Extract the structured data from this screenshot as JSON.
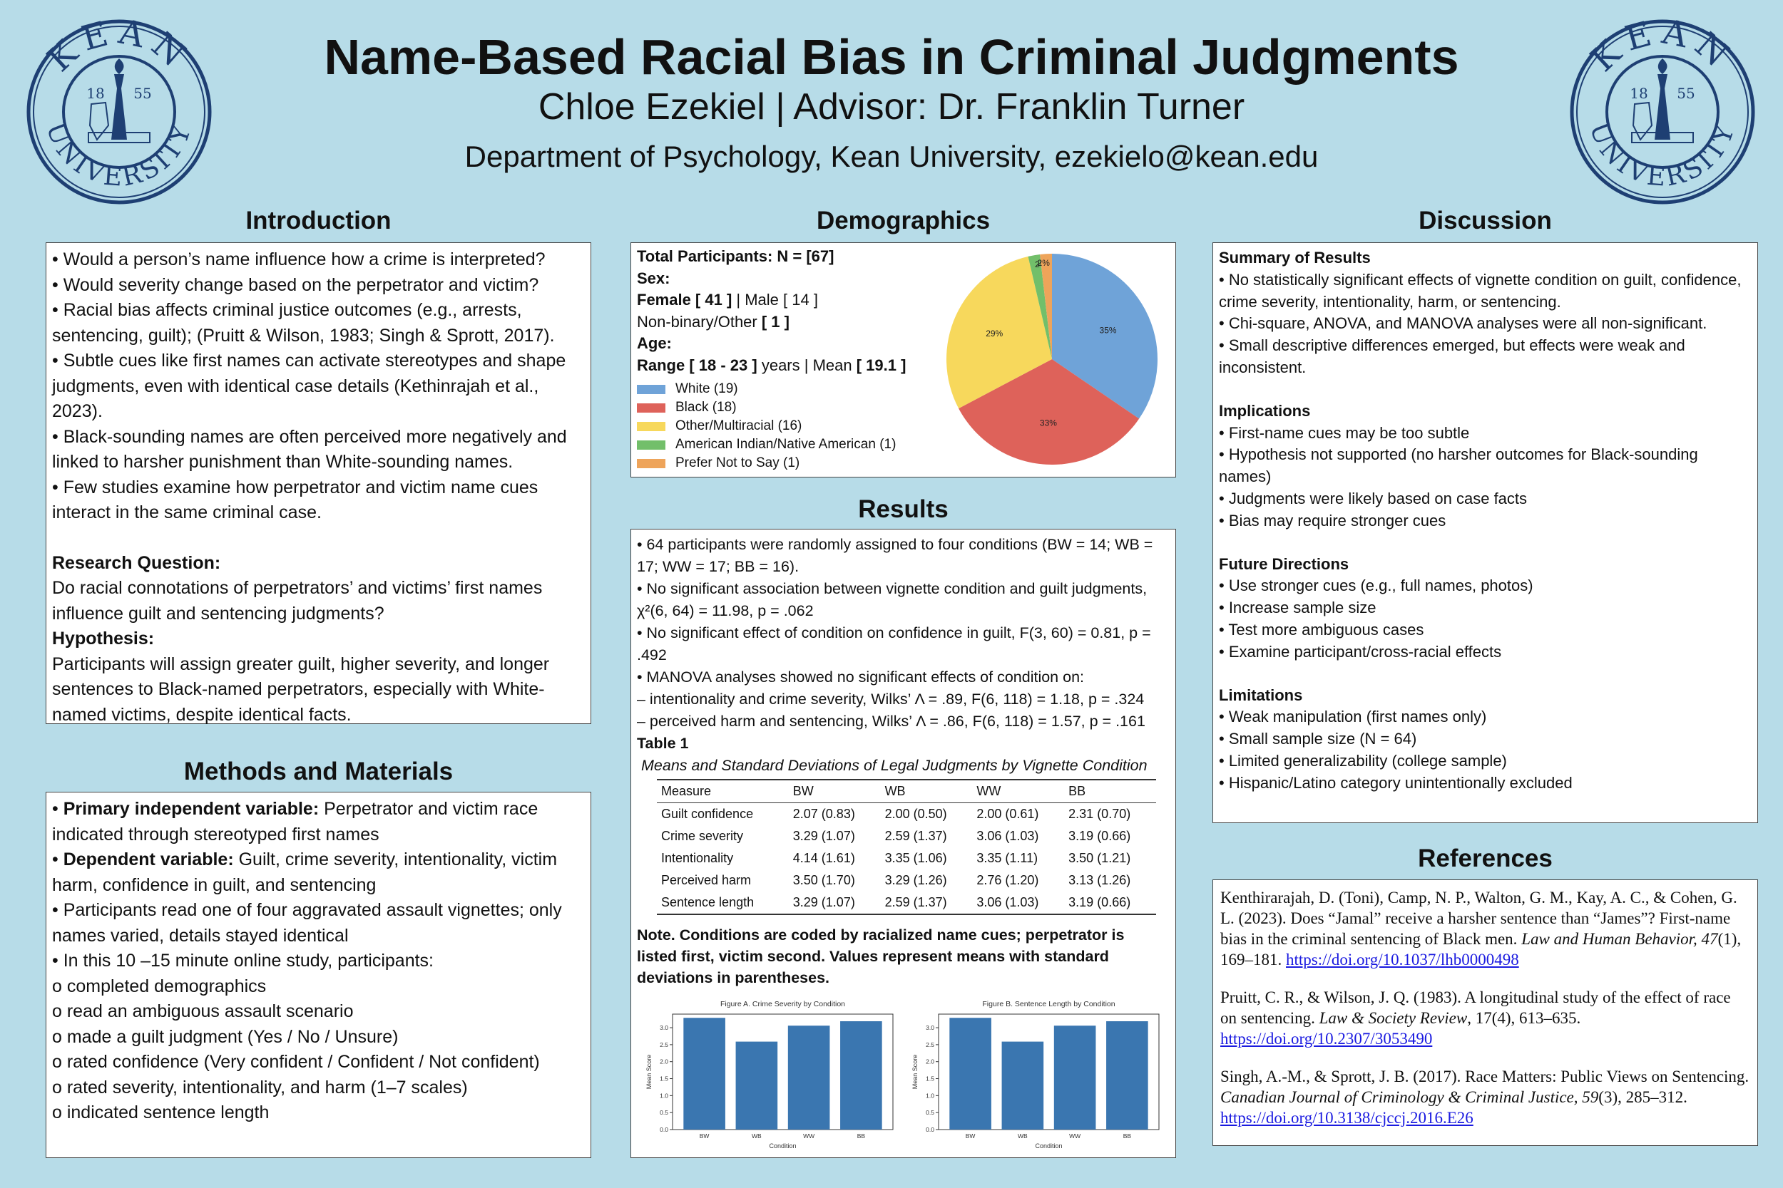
{
  "header": {
    "title": "Name-Based Racial Bias in Criminal Judgments",
    "authors": "Chloe Ezekiel | Advisor: Dr. Franklin Turner",
    "department": "Department of Psychology, Kean University, ezekielo@kean.edu",
    "logo": {
      "name": "kean-university-seal",
      "text_top": "KEAN",
      "text_bottom": "UNIVERSITY",
      "year_left": "18",
      "year_right": "55",
      "color": "#1e3f73"
    }
  },
  "introduction": {
    "title": "Introduction",
    "bullets": [
      "• Would a person’s name influence how a crime is interpreted?",
      "• Would severity change based on the perpetrator and victim?",
      "• Racial bias affects criminal justice outcomes (e.g., arrests, sentencing, guilt); (Pruitt & Wilson, 1983; Singh & Sprott, 2017).",
      "• Subtle cues like first names can activate stereotypes and shape judgments, even with identical case details (Kethinrajah et al., 2023).",
      "• Black-sounding names are often perceived more negatively and linked to harsher punishment than White-sounding names.",
      "• Few studies examine how perpetrator and victim name cues interact in the same criminal case."
    ],
    "rq_label": "Research Question:",
    "rq_text": "Do racial connotations of perpetrators’ and victims’ first names influence guilt and sentencing judgments?",
    "hyp_label": "Hypothesis:",
    "hyp_text": "Participants will assign greater guilt, higher severity, and longer sentences to Black-named perpetrators, especially with White-named victims, despite identical facts."
  },
  "methods": {
    "title": "Methods and Materials",
    "iv_label": "Primary independent variable:",
    "iv_text": " Perpetrator and victim race indicated through stereotyped first names",
    "dv_label": "Dependent variable:",
    "dv_text": " Guilt, crime severity, intentionality, victim harm, confidence in guilt, and sentencing",
    "bullets": [
      "• Participants read one of four aggravated assault vignettes; only names varied, details stayed identical",
      "• In this 10 –15 minute online study, participants:",
      " o completed demographics",
      " o read an ambiguous assault scenario",
      " o made a guilt judgment (Yes / No / Unsure)",
      " o rated confidence (Very confident / Confident / Not confident)",
      " o rated severity, intentionality, and harm (1–7 scales)",
      " o indicated sentence length"
    ]
  },
  "demographics": {
    "title": "Demographics",
    "total_label": "Total Participants: N = [67]",
    "sex_label": "Sex:",
    "female": "Female [ 41 ]",
    "male": " | Male [ 14 ]",
    "nonbinary_a": "Non-binary/Other ",
    "nonbinary_b": "[ 1 ]",
    "age_label": "Age:",
    "range_a": "Range [ 18 - 23 ]",
    "range_b": " years | Mean ",
    "range_c": "[ 19.1 ]",
    "legend": [
      {
        "label": "White (19)",
        "color": "#6fa3d8"
      },
      {
        "label": "Black (18)",
        "color": "#de625a"
      },
      {
        "label": "Other/Multiracial (16)",
        "color": "#f7d85c"
      },
      {
        "label": "American Indian/Native American (1)",
        "color": "#72bf6a"
      },
      {
        "label": "Prefer Not to Say (1)",
        "color": "#eea45a"
      }
    ]
  },
  "results": {
    "title": "Results",
    "bullets": [
      "• 64 participants were randomly assigned to four conditions (BW = 14; WB = 17; WW = 17; BB = 16).",
      "• No significant association between vignette condition and guilt judgments, χ²(6, 64) = 11.98, p = .062",
      "• No significant effect of condition on confidence in guilt, F(3, 60) = 0.81, p = .492",
      "• MANOVA analyses showed no significant effects of condition on:",
      " – intentionality and crime severity, Wilks’ Λ = .89, F(6, 118) = 1.18, p = .324",
      " – perceived harm and sentencing, Wilks’ Λ = .86, F(6, 118) = 1.57, p = .161"
    ],
    "table_label": "Table 1",
    "table_caption": "Means and Standard Deviations of Legal Judgments by Vignette Condition",
    "table_headers": [
      "Measure",
      "BW",
      "WB",
      "WW",
      "BB"
    ],
    "table_rows": [
      [
        "Guilt confidence",
        "2.07 (0.83)",
        "2.00 (0.50)",
        "2.00 (0.61)",
        "2.31 (0.70)"
      ],
      [
        "Crime severity",
        "3.29 (1.07)",
        "2.59 (1.37)",
        "3.06 (1.03)",
        "3.19 (0.66)"
      ],
      [
        "Intentionality",
        "4.14 (1.61)",
        "3.35 (1.06)",
        "3.35 (1.11)",
        "3.50 (1.21)"
      ],
      [
        "Perceived harm",
        "3.50 (1.70)",
        "3.29 (1.26)",
        "2.76 (1.20)",
        "3.13 (1.26)"
      ],
      [
        "Sentence length",
        "3.29 (1.07)",
        "2.59 (1.37)",
        "3.06 (1.03)",
        "3.19 (0.66)"
      ]
    ],
    "note": "Note. Conditions are coded by racialized name cues; perpetrator is listed first, victim second. Values represent means with standard deviations in parentheses."
  },
  "discussion": {
    "title": "Discussion",
    "sections": [
      {
        "heading": "Summary of Results",
        "items": [
          "• No statistically significant effects of vignette condition on guilt, confidence, crime severity, intentionality, harm, or sentencing.",
          " • Chi-square, ANOVA, and MANOVA analyses were all non-significant.",
          " • Small descriptive differences emerged, but effects were weak and inconsistent."
        ]
      },
      {
        "heading": "Implications",
        "items": [
          " • First-name cues may be too subtle",
          " • Hypothesis not supported (no harsher outcomes for Black-sounding names)",
          " • Judgments were likely based on case facts",
          " • Bias may require stronger cues"
        ]
      },
      {
        "heading": "Future Directions",
        "items": [
          " • Use stronger cues (e.g., full names, photos)",
          " • Increase sample size",
          " • Test more ambiguous cases",
          " • Examine participant/cross-racial effects"
        ]
      },
      {
        "heading": "Limitations",
        "items": [
          " • Weak manipulation (first names only)",
          " • Small sample size (N = 64)",
          " • Limited generalizability (college sample)",
          " • Hispanic/Latino category unintentionally excluded"
        ]
      }
    ]
  },
  "references": {
    "title": "References",
    "items": [
      {
        "pre": "Kenthirarajah, D. (Toni), Camp, N. P., Walton, G. M., Kay, A. C., & Cohen, G. L. (2023). Does “Jamal” receive a harsher sentence than “James”? First-name bias in the criminal sentencing of Black men. ",
        "journal": "Law and Human Behavior, 47",
        "post": "(1), 169–181. ",
        "doi": "https://doi.org/10.1037/lhb0000498"
      },
      {
        "pre": "Pruitt, C. R., & Wilson, J. Q. (1983). A longitudinal study of the effect of race on sentencing. ",
        "journal": "Law & Society Review",
        "post": ", 17(4), 613–635. ",
        "doi": "https://doi.org/10.2307/3053490"
      },
      {
        "pre": "Singh, A.-M., & Sprott, J. B. (2017). Race Matters: Public Views on Sentencing. ",
        "journal": "Canadian Journal of Criminology & Criminal Justice, 59",
        "post": "(3), 285–312. ",
        "doi": "https://doi.org/10.3138/cjccj.2016.E26"
      }
    ]
  },
  "chart_data": [
    {
      "type": "pie",
      "categories": [
        "White",
        "Black",
        "Other/Multiracial",
        "American Indian/Native American",
        "Prefer Not to Say"
      ],
      "values": [
        19,
        18,
        16,
        1,
        1
      ],
      "labels": [
        "35%",
        "33%",
        "29%",
        "2%",
        "2%"
      ],
      "colors": [
        "#6fa3d8",
        "#de625a",
        "#f7d85c",
        "#72bf6a",
        "#eea45a"
      ],
      "legend": "left"
    },
    {
      "type": "bar",
      "title": "Figure A. Crime Severity by Condition",
      "categories": [
        "BW",
        "WB",
        "WW",
        "BB"
      ],
      "values": [
        3.29,
        2.59,
        3.06,
        3.19
      ],
      "xlabel": "Condition",
      "ylabel": "Mean Score",
      "ylim": [
        0,
        3.4
      ],
      "yticks": [
        "0.0",
        "0.5",
        "1.0",
        "1.5",
        "2.0",
        "2.5",
        "3.0"
      ],
      "color": "#3a76b0"
    },
    {
      "type": "bar",
      "title": "Figure B. Sentence Length by Condition",
      "categories": [
        "BW",
        "WB",
        "WW",
        "BB"
      ],
      "values": [
        3.29,
        2.59,
        3.06,
        3.19
      ],
      "xlabel": "Condition",
      "ylabel": "Mean Score",
      "ylim": [
        0,
        3.4
      ],
      "yticks": [
        "0.0",
        "0.5",
        "1.0",
        "1.5",
        "2.0",
        "2.5",
        "3.0"
      ],
      "color": "#3a76b0"
    }
  ]
}
